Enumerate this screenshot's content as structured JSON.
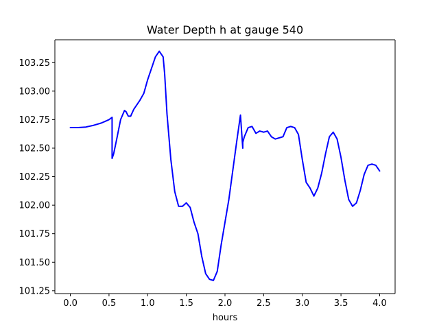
{
  "chart_data": {
    "type": "line",
    "title": "Water Depth h at gauge 540",
    "xlabel": "hours",
    "ylabel": "",
    "xlim": [
      -0.2,
      4.2
    ],
    "ylim": [
      101.225,
      103.45
    ],
    "xticks": [
      0.0,
      0.5,
      1.0,
      1.5,
      2.0,
      2.5,
      3.0,
      3.5,
      4.0
    ],
    "xtick_labels": [
      "0.0",
      "0.5",
      "1.0",
      "1.5",
      "2.0",
      "2.5",
      "3.0",
      "3.5",
      "4.0"
    ],
    "yticks": [
      101.25,
      101.5,
      101.75,
      102.0,
      102.25,
      102.5,
      102.75,
      103.0,
      103.25
    ],
    "ytick_labels": [
      "101.25",
      "101.50",
      "101.75",
      "102.00",
      "102.25",
      "102.50",
      "102.75",
      "103.00",
      "103.25"
    ],
    "grid": false,
    "legend": "none",
    "series": [
      {
        "color": "#0000ff",
        "x": [
          0.0,
          0.1,
          0.2,
          0.3,
          0.4,
          0.45,
          0.5,
          0.54,
          0.54,
          0.56,
          0.6,
          0.65,
          0.7,
          0.72,
          0.75,
          0.78,
          0.82,
          0.86,
          0.9,
          0.95,
          1.0,
          1.05,
          1.1,
          1.15,
          1.2,
          1.22,
          1.25,
          1.3,
          1.35,
          1.4,
          1.45,
          1.5,
          1.55,
          1.6,
          1.65,
          1.7,
          1.75,
          1.8,
          1.85,
          1.9,
          1.95,
          2.0,
          2.05,
          2.1,
          2.15,
          2.2,
          2.23,
          2.23,
          2.25,
          2.3,
          2.35,
          2.4,
          2.45,
          2.5,
          2.55,
          2.6,
          2.65,
          2.7,
          2.75,
          2.8,
          2.85,
          2.9,
          2.95,
          3.0,
          3.05,
          3.1,
          3.15,
          3.2,
          3.25,
          3.3,
          3.35,
          3.4,
          3.45,
          3.5,
          3.55,
          3.6,
          3.65,
          3.7,
          3.75,
          3.8,
          3.85,
          3.9,
          3.95,
          4.0
        ],
        "y": [
          102.68,
          102.68,
          102.685,
          102.7,
          102.72,
          102.735,
          102.75,
          102.77,
          102.41,
          102.45,
          102.58,
          102.75,
          102.83,
          102.82,
          102.78,
          102.78,
          102.84,
          102.88,
          102.92,
          102.98,
          103.1,
          103.2,
          103.3,
          103.35,
          103.3,
          103.15,
          102.8,
          102.4,
          102.12,
          101.99,
          101.99,
          102.02,
          101.98,
          101.85,
          101.75,
          101.55,
          101.4,
          101.35,
          101.34,
          101.42,
          101.65,
          101.85,
          102.05,
          102.3,
          102.55,
          102.79,
          102.5,
          102.55,
          102.6,
          102.68,
          102.69,
          102.63,
          102.65,
          102.64,
          102.65,
          102.6,
          102.58,
          102.59,
          102.6,
          102.68,
          102.69,
          102.68,
          102.62,
          102.4,
          102.2,
          102.15,
          102.08,
          102.15,
          102.28,
          102.45,
          102.6,
          102.64,
          102.58,
          102.42,
          102.22,
          102.05,
          101.99,
          102.02,
          102.13,
          102.27,
          102.35,
          102.36,
          102.35,
          102.3
        ]
      }
    ]
  }
}
